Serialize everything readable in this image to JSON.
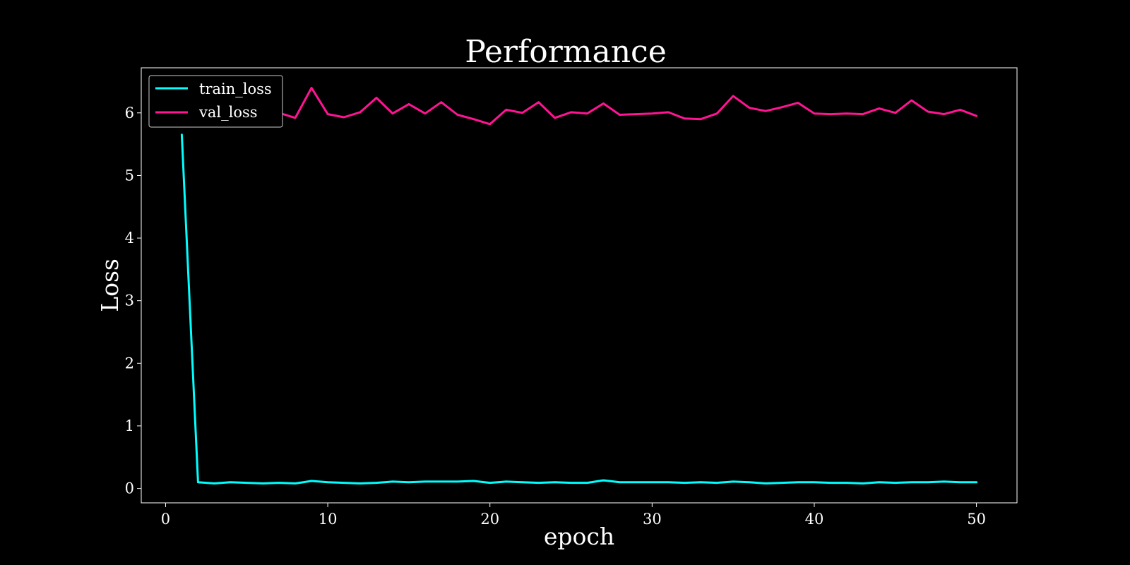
{
  "chart_data": {
    "type": "line",
    "title": "Performance",
    "xlabel": "epoch",
    "ylabel": "Loss",
    "xlim": [
      -1.5,
      52.5
    ],
    "ylim": [
      -0.23,
      6.72
    ],
    "xticks": [
      0,
      10,
      20,
      30,
      40,
      50
    ],
    "yticks": [
      0,
      1,
      2,
      3,
      4,
      5,
      6
    ],
    "grid": false,
    "legend_position": "upper-left",
    "background": "#000000",
    "x": [
      1,
      2,
      3,
      4,
      5,
      6,
      7,
      8,
      9,
      10,
      11,
      12,
      13,
      14,
      15,
      16,
      17,
      18,
      19,
      20,
      21,
      22,
      23,
      24,
      25,
      26,
      27,
      28,
      29,
      30,
      31,
      32,
      33,
      34,
      35,
      36,
      37,
      38,
      39,
      40,
      41,
      42,
      43,
      44,
      45,
      46,
      47,
      48,
      49,
      50
    ],
    "series": [
      {
        "name": "train_loss",
        "color": "#00ffff",
        "values": [
          5.65,
          0.1,
          0.08,
          0.1,
          0.09,
          0.08,
          0.09,
          0.08,
          0.12,
          0.1,
          0.09,
          0.08,
          0.09,
          0.11,
          0.1,
          0.11,
          0.11,
          0.11,
          0.12,
          0.09,
          0.11,
          0.1,
          0.09,
          0.1,
          0.09,
          0.09,
          0.13,
          0.1,
          0.1,
          0.1,
          0.1,
          0.09,
          0.1,
          0.09,
          0.11,
          0.1,
          0.08,
          0.09,
          0.1,
          0.1,
          0.09,
          0.09,
          0.08,
          0.1,
          0.09,
          0.1,
          0.1,
          0.11,
          0.1,
          0.1
        ]
      },
      {
        "name": "val_loss",
        "color": "#ff1493",
        "values": [
          6.17,
          6.25,
          6.05,
          6.3,
          5.9,
          5.98,
          6.0,
          5.92,
          6.4,
          5.98,
          5.93,
          6.01,
          6.24,
          5.99,
          6.14,
          5.99,
          6.17,
          5.97,
          5.9,
          5.82,
          6.05,
          6.0,
          6.17,
          5.92,
          6.01,
          5.99,
          6.15,
          5.97,
          5.98,
          5.99,
          6.01,
          5.91,
          5.9,
          5.99,
          6.27,
          6.08,
          6.03,
          6.09,
          6.16,
          5.99,
          5.98,
          5.99,
          5.98,
          6.07,
          6.0,
          6.2,
          6.02,
          5.98,
          6.05,
          5.95
        ]
      }
    ]
  }
}
